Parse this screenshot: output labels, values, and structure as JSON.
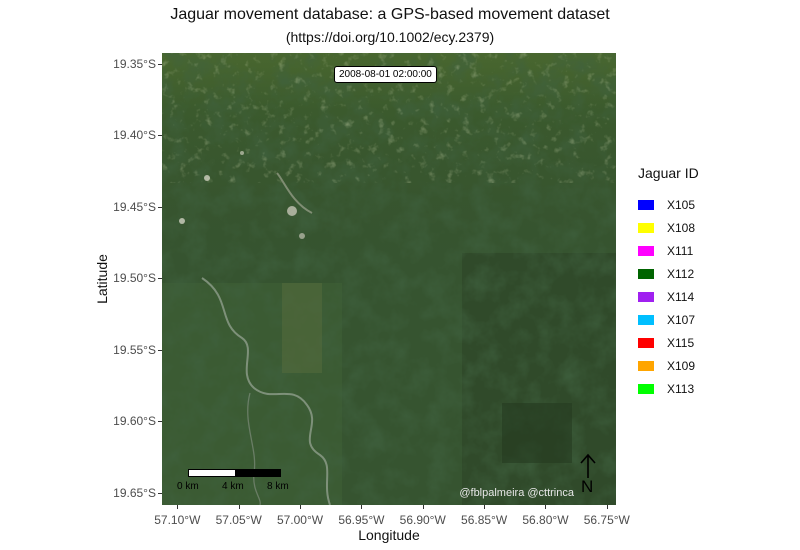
{
  "title": "Jaguar movement database: a GPS-based movement dataset",
  "subtitle": "(https://doi.org/10.1002/ecy.2379)",
  "timestamp": "2008-08-01 02:00:00",
  "credit": "@fblpalmeira @cttrinca",
  "axes": {
    "x_title": "Longitude",
    "y_title": "Latitude",
    "x_ticks": [
      {
        "label": "57.10°W",
        "value": -57.1
      },
      {
        "label": "57.05°W",
        "value": -57.05
      },
      {
        "label": "57.00°W",
        "value": -57.0
      },
      {
        "label": "56.95°W",
        "value": -56.95
      },
      {
        "label": "56.90°W",
        "value": -56.9
      },
      {
        "label": "56.85°W",
        "value": -56.85
      },
      {
        "label": "56.80°W",
        "value": -56.8
      },
      {
        "label": "56.75°W",
        "value": -56.75
      }
    ],
    "y_ticks": [
      {
        "label": "19.35°S",
        "value": -19.35
      },
      {
        "label": "19.40°S",
        "value": -19.4
      },
      {
        "label": "19.45°S",
        "value": -19.45
      },
      {
        "label": "19.50°S",
        "value": -19.5
      },
      {
        "label": "19.55°S",
        "value": -19.55
      },
      {
        "label": "19.60°S",
        "value": -19.6
      },
      {
        "label": "19.65°S",
        "value": -19.65
      }
    ],
    "xlim": [
      -57.1125,
      -56.7425
    ],
    "ylim": [
      -19.6585,
      -19.3425
    ]
  },
  "scalebar": {
    "labels": [
      "0 km",
      "4 km",
      "8 km"
    ]
  },
  "north_arrow": {
    "letter": "N",
    "icon": "north-arrow-icon"
  },
  "legend": {
    "title": "Jaguar ID",
    "items": [
      {
        "label": "X105",
        "color": "#0000ff"
      },
      {
        "label": "X108",
        "color": "#ffff00"
      },
      {
        "label": "X111",
        "color": "#ff00ff"
      },
      {
        "label": "X112",
        "color": "#006400"
      },
      {
        "label": "X114",
        "color": "#a020f0"
      },
      {
        "label": "X107",
        "color": "#00bfff"
      },
      {
        "label": "X115",
        "color": "#ff0000"
      },
      {
        "label": "X109",
        "color": "#ffa500"
      },
      {
        "label": "X113",
        "color": "#00ff00"
      }
    ]
  }
}
